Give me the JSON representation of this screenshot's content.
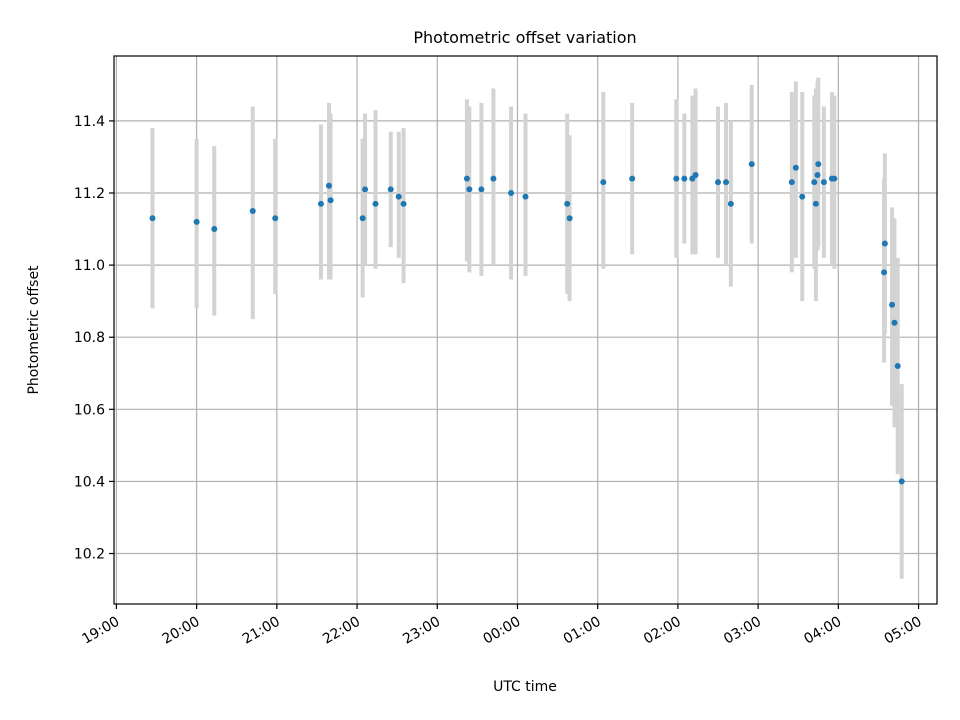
{
  "chart_data": {
    "type": "scatter",
    "title": "Photometric offset variation",
    "xlabel": "UTC time",
    "ylabel": "Photometric offset",
    "x_unit": "UTC time, hours since 00:00 of the second day (negative = previous evening)",
    "xlim": [
      -5.03,
      5.23
    ],
    "ylim": [
      10.06,
      11.58
    ],
    "x_ticks": [
      {
        "value": -5,
        "label": "19:00"
      },
      {
        "value": -4,
        "label": "20:00"
      },
      {
        "value": -3,
        "label": "21:00"
      },
      {
        "value": -2,
        "label": "22:00"
      },
      {
        "value": -1,
        "label": "23:00"
      },
      {
        "value": 0,
        "label": "00:00"
      },
      {
        "value": 1,
        "label": "01:00"
      },
      {
        "value": 2,
        "label": "02:00"
      },
      {
        "value": 3,
        "label": "03:00"
      },
      {
        "value": 4,
        "label": "04:00"
      },
      {
        "value": 5,
        "label": "05:00"
      }
    ],
    "y_ticks": [
      {
        "value": 10.2,
        "label": "10.2"
      },
      {
        "value": 10.4,
        "label": "10.4"
      },
      {
        "value": 10.6,
        "label": "10.6"
      },
      {
        "value": 10.8,
        "label": "10.8"
      },
      {
        "value": 11.0,
        "label": "11.0"
      },
      {
        "value": 11.2,
        "label": "11.2"
      },
      {
        "value": 11.4,
        "label": "11.4"
      }
    ],
    "grid": true,
    "point_color": "#1f77b4",
    "errorbar_color": "#d3d3d3",
    "points": [
      {
        "x": -4.55,
        "y": 11.13,
        "ylo": 10.88,
        "yhi": 11.38
      },
      {
        "x": -4.0,
        "y": 11.12,
        "ylo": 10.88,
        "yhi": 11.35
      },
      {
        "x": -3.78,
        "y": 11.1,
        "ylo": 10.86,
        "yhi": 11.33
      },
      {
        "x": -3.3,
        "y": 11.15,
        "ylo": 10.85,
        "yhi": 11.44
      },
      {
        "x": -3.02,
        "y": 11.13,
        "ylo": 10.92,
        "yhi": 11.35
      },
      {
        "x": -2.45,
        "y": 11.17,
        "ylo": 10.96,
        "yhi": 11.39
      },
      {
        "x": -2.35,
        "y": 11.22,
        "ylo": 10.96,
        "yhi": 11.45
      },
      {
        "x": -2.33,
        "y": 11.18,
        "ylo": 10.96,
        "yhi": 11.42
      },
      {
        "x": -1.93,
        "y": 11.13,
        "ylo": 10.91,
        "yhi": 11.35
      },
      {
        "x": -1.9,
        "y": 11.21,
        "ylo": 11.0,
        "yhi": 11.42
      },
      {
        "x": -1.77,
        "y": 11.17,
        "ylo": 10.99,
        "yhi": 11.43
      },
      {
        "x": -1.58,
        "y": 11.21,
        "ylo": 11.05,
        "yhi": 11.37
      },
      {
        "x": -1.48,
        "y": 11.19,
        "ylo": 11.02,
        "yhi": 11.37
      },
      {
        "x": -1.42,
        "y": 11.17,
        "ylo": 10.95,
        "yhi": 11.38
      },
      {
        "x": -0.63,
        "y": 11.24,
        "ylo": 11.01,
        "yhi": 11.46
      },
      {
        "x": -0.6,
        "y": 11.21,
        "ylo": 10.98,
        "yhi": 11.44
      },
      {
        "x": -0.45,
        "y": 11.21,
        "ylo": 10.97,
        "yhi": 11.45
      },
      {
        "x": -0.3,
        "y": 11.24,
        "ylo": 11.0,
        "yhi": 11.49
      },
      {
        "x": -0.08,
        "y": 11.2,
        "ylo": 10.96,
        "yhi": 11.44
      },
      {
        "x": 0.1,
        "y": 11.19,
        "ylo": 10.97,
        "yhi": 11.42
      },
      {
        "x": 0.62,
        "y": 11.17,
        "ylo": 10.92,
        "yhi": 11.42
      },
      {
        "x": 0.65,
        "y": 11.13,
        "ylo": 10.9,
        "yhi": 11.36
      },
      {
        "x": 1.07,
        "y": 11.23,
        "ylo": 10.99,
        "yhi": 11.48
      },
      {
        "x": 1.43,
        "y": 11.24,
        "ylo": 11.03,
        "yhi": 11.45
      },
      {
        "x": 1.98,
        "y": 11.24,
        "ylo": 11.02,
        "yhi": 11.46
      },
      {
        "x": 2.08,
        "y": 11.24,
        "ylo": 11.06,
        "yhi": 11.42
      },
      {
        "x": 2.18,
        "y": 11.24,
        "ylo": 11.03,
        "yhi": 11.47
      },
      {
        "x": 2.22,
        "y": 11.25,
        "ylo": 11.03,
        "yhi": 11.49
      },
      {
        "x": 2.5,
        "y": 11.23,
        "ylo": 11.02,
        "yhi": 11.44
      },
      {
        "x": 2.6,
        "y": 11.23,
        "ylo": 11.0,
        "yhi": 11.45
      },
      {
        "x": 2.66,
        "y": 11.17,
        "ylo": 10.94,
        "yhi": 11.4
      },
      {
        "x": 2.92,
        "y": 11.28,
        "ylo": 11.06,
        "yhi": 11.5
      },
      {
        "x": 3.42,
        "y": 11.23,
        "ylo": 10.98,
        "yhi": 11.48
      },
      {
        "x": 3.47,
        "y": 11.27,
        "ylo": 11.02,
        "yhi": 11.51
      },
      {
        "x": 3.55,
        "y": 11.19,
        "ylo": 10.9,
        "yhi": 11.48
      },
      {
        "x": 3.7,
        "y": 11.23,
        "ylo": 10.99,
        "yhi": 11.47
      },
      {
        "x": 3.72,
        "y": 11.17,
        "ylo": 10.9,
        "yhi": 11.49
      },
      {
        "x": 3.74,
        "y": 11.25,
        "ylo": 11.04,
        "yhi": 11.51
      },
      {
        "x": 3.75,
        "y": 11.28,
        "ylo": 11.05,
        "yhi": 11.52
      },
      {
        "x": 3.82,
        "y": 11.23,
        "ylo": 11.02,
        "yhi": 11.44
      },
      {
        "x": 3.92,
        "y": 11.24,
        "ylo": 11.0,
        "yhi": 11.48
      },
      {
        "x": 3.95,
        "y": 11.24,
        "ylo": 10.99,
        "yhi": 11.47
      },
      {
        "x": 4.57,
        "y": 10.98,
        "ylo": 10.73,
        "yhi": 11.24
      },
      {
        "x": 4.58,
        "y": 11.06,
        "ylo": 10.81,
        "yhi": 11.31
      },
      {
        "x": 4.67,
        "y": 10.89,
        "ylo": 10.61,
        "yhi": 11.16
      },
      {
        "x": 4.7,
        "y": 10.84,
        "ylo": 10.55,
        "yhi": 11.13
      },
      {
        "x": 4.74,
        "y": 10.72,
        "ylo": 10.42,
        "yhi": 11.02
      },
      {
        "x": 4.79,
        "y": 10.4,
        "ylo": 10.13,
        "yhi": 10.67
      }
    ]
  }
}
